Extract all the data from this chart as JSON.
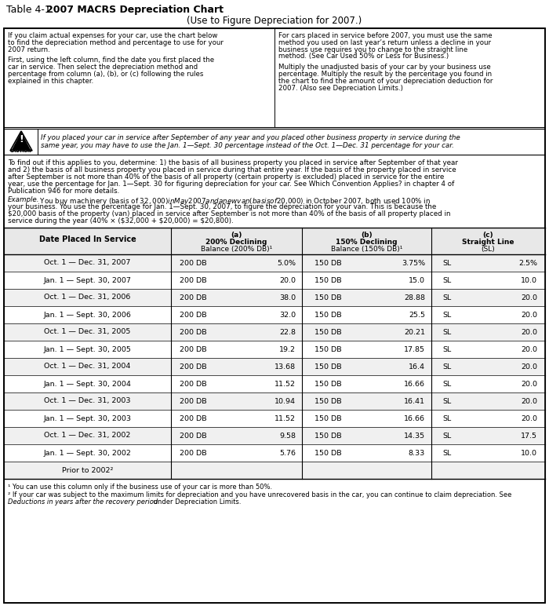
{
  "title_plain": "Table 4-1. ",
  "title_bold": "2007 MACRS Depreciation Chart",
  "title_sub": "(Use to Figure Depreciation for 2007.)",
  "intro_left": [
    "If you claim actual expenses for your car, use the chart below",
    "to find the depreciation method and percentage to use for your",
    "2007 return.",
    "",
    "First, using the left column, find the date you first placed the",
    "car in service. Then select the depreciation method and",
    "percentage from column (a), (b), or (c) following the rules",
    "explained in this chapter."
  ],
  "intro_right": [
    "For cars placed in service before 2007, you must use the same",
    "method you used on last year’s return unless a decline in your",
    "business use requires you to change to the straight line",
    "method. (See Car Used 50% or Less for Business.)",
    "",
    "Multiply the unadjusted basis of your car by your business use",
    "percentage. Multiply the result by the percentage you found in",
    "the chart to find the amount of your depreciation deduction for",
    "2007. (Also see Depreciation Limits.)"
  ],
  "caution_line1": "If you placed your car in service after September of any year and you placed other business property in service during the",
  "caution_line2": "same year, you may have to use the Jan. 1—Sept. 30 percentage instead of the Oct. 1—Dec. 31 percentage for your car.",
  "para1_lines": [
    "To find out if this applies to you, determine: 1) the basis of all business property you placed in service after September of that year",
    "and 2) the basis of all business property you placed in service during that entire year. If the basis of the property placed in service",
    "after September is not more than 40% of the basis of all property (certain property is excluded) placed in service for the entire",
    "year, use the percentage for Jan. 1—Sept. 30 for figuring depreciation for your car. See Which Convention Applies? in chapter 4 of",
    "Publication 946 for more details."
  ],
  "example_lines": [
    [
      "italic",
      "Example."
    ],
    [
      "normal",
      " You buy machinery (basis of $32,000) in May 2007 and a new van (basis of $20,000) in October 2007, both used 100% in"
    ],
    [
      "normal",
      "your business. You use the percentage for Jan. 1—Sept. 30, 2007, to figure the depreciation for your van. This is because the"
    ],
    [
      "normal",
      "$20,000 basis of the property (van) placed in service after September is not more than 40% of the basis of all property placed in"
    ],
    [
      "normal",
      "service during the year (40% × ($32,000 + $20,000) = $20,800)."
    ]
  ],
  "table_header_date": "Date Placed In Service",
  "col_a": [
    "(a)",
    "200% Declining",
    "Balance (200% DB)¹"
  ],
  "col_b": [
    "(b)",
    "150% Declining",
    "Balance (150% DB)¹"
  ],
  "col_c": [
    "(c)",
    "Straight Line",
    "(SL)"
  ],
  "table_rows": [
    [
      "Oct. 1 — Dec. 31, 2007",
      "200 DB",
      "5.0%",
      "150 DB",
      "3.75%",
      "SL",
      "2.5%"
    ],
    [
      "Jan. 1 — Sept. 30, 2007",
      "200 DB",
      "20.0",
      "150 DB",
      "15.0",
      "SL",
      "10.0"
    ],
    [
      "Oct. 1 — Dec. 31, 2006",
      "200 DB",
      "38.0",
      "150 DB",
      "28.88",
      "SL",
      "20.0"
    ],
    [
      "Jan. 1 — Sept. 30, 2006",
      "200 DB",
      "32.0",
      "150 DB",
      "25.5",
      "SL",
      "20.0"
    ],
    [
      "Oct. 1 — Dec. 31, 2005",
      "200 DB",
      "22.8",
      "150 DB",
      "20.21",
      "SL",
      "20.0"
    ],
    [
      "Jan. 1 — Sept. 30, 2005",
      "200 DB",
      "19.2",
      "150 DB",
      "17.85",
      "SL",
      "20.0"
    ],
    [
      "Oct. 1 — Dec. 31, 2004",
      "200 DB",
      "13.68",
      "150 DB",
      "16.4",
      "SL",
      "20.0"
    ],
    [
      "Jan. 1 — Sept. 30, 2004",
      "200 DB",
      "11.52",
      "150 DB",
      "16.66",
      "SL",
      "20.0"
    ],
    [
      "Oct. 1 — Dec. 31, 2003",
      "200 DB",
      "10.94",
      "150 DB",
      "16.41",
      "SL",
      "20.0"
    ],
    [
      "Jan. 1 — Sept. 30, 2003",
      "200 DB",
      "11.52",
      "150 DB",
      "16.66",
      "SL",
      "20.0"
    ],
    [
      "Oct. 1 — Dec. 31, 2002",
      "200 DB",
      "9.58",
      "150 DB",
      "14.35",
      "SL",
      "17.5"
    ],
    [
      "Jan. 1 — Sept. 30, 2002",
      "200 DB",
      "5.76",
      "150 DB",
      "8.33",
      "SL",
      "10.0"
    ],
    [
      "Prior to 2002²",
      "",
      "",
      "",
      "",
      "",
      ""
    ]
  ],
  "footnote1": "¹ You can use this column only if the business use of your car is more than 50%.",
  "footnote2a": "² If your car was subject to the maximum limits for depreciation and you have unrecovered basis in the car, you can continue to claim depreciation. See",
  "footnote2b_italic": "Deductions in years after the recovery period",
  "footnote2b_normal": " under Depreciation Limits."
}
